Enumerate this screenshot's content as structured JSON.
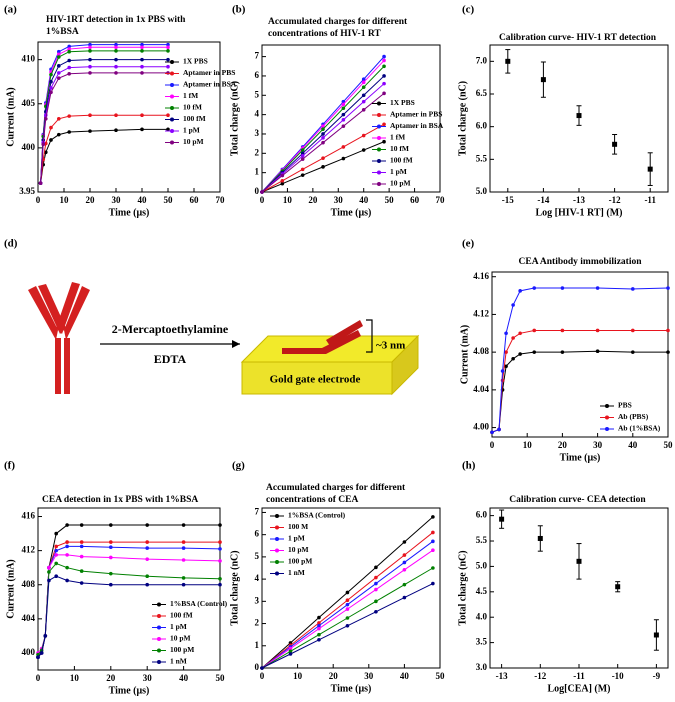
{
  "chart_data": [
    {
      "type": "line",
      "panel": "(a)",
      "title": "HIV-1RT detection in 1x PBS with 1%BSA",
      "xlabel": "Time (μs)",
      "ylabel": "Current (mA)",
      "x": [
        1,
        2,
        3,
        5,
        8,
        12,
        20,
        30,
        40,
        50
      ],
      "xlim": [
        0,
        70
      ],
      "xticks": [
        0,
        10,
        20,
        30,
        40,
        50,
        60,
        70
      ],
      "ylim": [
        3.95,
        4.12
      ],
      "yticks": [
        3.95,
        {
          "value": 4.0,
          "label": "400"
        },
        {
          "value": 4.05,
          "label": "405"
        },
        {
          "value": 4.1,
          "label": "410"
        }
      ],
      "legend": "upper right",
      "series": [
        {
          "name": "1X PBS",
          "color": "#000000",
          "values": [
            3.96,
            3.981,
            3.995,
            4.009,
            4.015,
            4.018,
            4.019,
            4.02,
            4.021,
            4.021
          ]
        },
        {
          "name": "Aptamer in PBS",
          "color": "#e8141e",
          "values": [
            3.96,
            3.987,
            4.005,
            4.023,
            4.033,
            4.036,
            4.037,
            4.037,
            4.037,
            4.037
          ]
        },
        {
          "name": "Aptamer in BSA",
          "color": "#1a1aff",
          "values": [
            3.96,
            4.015,
            4.051,
            4.089,
            4.109,
            4.115,
            4.117,
            4.117,
            4.117,
            4.117
          ]
        },
        {
          "name": "1 fM",
          "color": "#ff00ff",
          "values": [
            3.96,
            4.014,
            4.049,
            4.086,
            4.106,
            4.112,
            4.114,
            4.114,
            4.114,
            4.114
          ]
        },
        {
          "name": "10 fM",
          "color": "#008000",
          "values": [
            3.96,
            4.013,
            4.047,
            4.083,
            4.103,
            4.109,
            4.11,
            4.11,
            4.11,
            4.11
          ]
        },
        {
          "name": "100 fM",
          "color": "#000080",
          "values": [
            3.96,
            4.009,
            4.041,
            4.075,
            4.093,
            4.099,
            4.1,
            4.1,
            4.1,
            4.1
          ]
        },
        {
          "name": "1 pM",
          "color": "#8b00ff",
          "values": [
            3.96,
            4.006,
            4.037,
            4.068,
            4.085,
            4.091,
            4.092,
            4.092,
            4.092,
            4.092
          ]
        },
        {
          "name": "10 pM",
          "color": "#800080",
          "values": [
            3.96,
            4.004,
            4.033,
            4.063,
            4.079,
            4.084,
            4.085,
            4.085,
            4.085,
            4.085
          ]
        }
      ]
    },
    {
      "type": "line",
      "panel": "(b)",
      "title": "Accumulated charges for different concentrations of HIV-1 RT",
      "xlabel": "Time (μs)",
      "ylabel": "Total charge (nC)",
      "x": [
        0,
        8,
        16,
        24,
        32,
        40,
        48
      ],
      "xlim": [
        0,
        70
      ],
      "xticks": [
        0,
        10,
        20,
        30,
        40,
        50,
        60,
        70
      ],
      "ylim": [
        0,
        7.6
      ],
      "yticks": [
        0,
        1,
        2,
        3,
        4,
        5,
        6,
        7
      ],
      "legend": "lower right",
      "series": [
        {
          "name": "1X PBS",
          "color": "#000000",
          "values": [
            0,
            0.43,
            0.87,
            1.3,
            1.73,
            2.17,
            2.6
          ]
        },
        {
          "name": "Aptamer in PBS",
          "color": "#e8141e",
          "values": [
            0,
            0.58,
            1.17,
            1.75,
            2.33,
            2.92,
            3.5
          ]
        },
        {
          "name": "Aptamer in BSA",
          "color": "#1a1aff",
          "values": [
            0,
            1.17,
            2.33,
            3.5,
            4.67,
            5.83,
            7.0
          ]
        },
        {
          "name": "1 fM",
          "color": "#ff00ff",
          "values": [
            0,
            1.13,
            2.27,
            3.4,
            4.53,
            5.67,
            6.8
          ]
        },
        {
          "name": "10 fM",
          "color": "#008000",
          "values": [
            0,
            1.08,
            2.17,
            3.25,
            4.33,
            5.42,
            6.5
          ]
        },
        {
          "name": "100 fM",
          "color": "#000080",
          "values": [
            0,
            1,
            2,
            3,
            4,
            5,
            6
          ]
        },
        {
          "name": "1 pM",
          "color": "#8b00ff",
          "values": [
            0,
            0.93,
            1.87,
            2.8,
            3.73,
            4.67,
            5.6
          ]
        },
        {
          "name": "10 pM",
          "color": "#800080",
          "values": [
            0,
            0.85,
            1.7,
            2.55,
            3.4,
            4.25,
            5.1
          ]
        }
      ]
    },
    {
      "type": "scatter",
      "panel": "(c)",
      "title": "Calibration curve- HIV-1 RT detection",
      "xlabel": "Log [HIV-1 RT] (M)",
      "ylabel": "Total charge (nC)",
      "color": "#000000",
      "x": [
        -15,
        -14,
        -13,
        -12,
        -11
      ],
      "values": [
        7.0,
        6.72,
        6.17,
        5.73,
        5.35
      ],
      "errors": [
        0.18,
        0.27,
        0.15,
        0.15,
        0.25
      ],
      "xlim": [
        -15.5,
        -10.5
      ],
      "xticks": [
        -15,
        -14,
        -13,
        -12,
        -11
      ],
      "ylim": [
        5.0,
        7.25
      ],
      "yticks": [
        {
          "value": 5.0,
          "label": "5.0"
        },
        5.5,
        {
          "value": 6.0,
          "label": "6.0"
        },
        6.5,
        {
          "value": 7.0,
          "label": "7.0"
        }
      ]
    },
    {
      "type": "line",
      "panel": "(e)",
      "title": "CEA Antibody immobilization",
      "xlabel": "Time (μs)",
      "ylabel": "Current (mA)",
      "x": [
        0,
        2,
        3,
        4,
        6,
        8,
        12,
        20,
        30,
        40,
        50
      ],
      "xlim": [
        0,
        50
      ],
      "xticks": [
        0,
        10,
        20,
        30,
        40,
        50
      ],
      "ylim": [
        3.99,
        4.165
      ],
      "yticks": [
        {
          "value": 4.0,
          "label": "4.00"
        },
        4.04,
        {
          "value": 4.08,
          "label": "4.08"
        },
        4.12,
        4.16
      ],
      "legend": "lower right",
      "series": [
        {
          "name": "PBS",
          "color": "#000000",
          "values": [
            3.995,
            3.998,
            4.04,
            4.065,
            4.073,
            4.078,
            4.08,
            4.08,
            4.081,
            4.08,
            4.08
          ]
        },
        {
          "name": "Ab (PBS)",
          "color": "#e8141e",
          "values": [
            3.995,
            3.998,
            4.05,
            4.08,
            4.095,
            4.1,
            4.103,
            4.103,
            4.103,
            4.103,
            4.103
          ]
        },
        {
          "name": "Ab (1%BSA)",
          "color": "#1a1aff",
          "values": [
            3.995,
            3.998,
            4.06,
            4.1,
            4.13,
            4.145,
            4.148,
            4.148,
            4.148,
            4.147,
            4.148
          ]
        }
      ]
    },
    {
      "type": "line",
      "panel": "(f)",
      "title": "CEA detection in 1x PBS with 1%BSA",
      "xlabel": "Time (μs)",
      "ylabel": "Current (mA)",
      "x": [
        0,
        1,
        2,
        3,
        5,
        8,
        12,
        20,
        30,
        40,
        50
      ],
      "xlim": [
        0,
        50
      ],
      "xticks": [
        0,
        10,
        20,
        30,
        40,
        50
      ],
      "ylim": [
        3.98,
        4.17
      ],
      "yticks": [
        {
          "value": 4.0,
          "label": "400"
        },
        {
          "value": 4.04,
          "label": "404"
        },
        {
          "value": 4.08,
          "label": "408"
        },
        {
          "value": 4.12,
          "label": "412"
        },
        {
          "value": 4.16,
          "label": "416"
        }
      ],
      "legend": "lower right",
      "series": [
        {
          "name": "1%BSA (Control)",
          "color": "#000000",
          "values": [
            3.995,
            4.0,
            4.02,
            4.1,
            4.14,
            4.15,
            4.15,
            4.15,
            4.15,
            4.15,
            4.15
          ]
        },
        {
          "name": "100 fM",
          "color": "#e8141e",
          "values": [
            3.995,
            4.0,
            4.02,
            4.1,
            4.125,
            4.13,
            4.13,
            4.13,
            4.13,
            4.13,
            4.13
          ]
        },
        {
          "name": "1 pM",
          "color": "#1a1aff",
          "values": [
            3.995,
            4.0,
            4.02,
            4.1,
            4.12,
            4.125,
            4.125,
            4.124,
            4.123,
            4.123,
            4.122
          ]
        },
        {
          "name": "10 pM",
          "color": "#ff00ff",
          "values": [
            4.0,
            4.005,
            4.02,
            4.1,
            4.115,
            4.115,
            4.113,
            4.112,
            4.11,
            4.109,
            4.108
          ]
        },
        {
          "name": "100 pM",
          "color": "#008000",
          "values": [
            3.998,
            4.003,
            4.02,
            4.095,
            4.105,
            4.1,
            4.096,
            4.093,
            4.09,
            4.088,
            4.087
          ]
        },
        {
          "name": "1 nM",
          "color": "#000080",
          "values": [
            3.995,
            4.0,
            4.02,
            4.085,
            4.09,
            4.085,
            4.082,
            4.08,
            4.08,
            4.08,
            4.08
          ]
        }
      ]
    },
    {
      "type": "line",
      "panel": "(g)",
      "title": "Accumulated charges for different concentrations of CEA",
      "xlabel": "Time (μs)",
      "ylabel": "Total charge (nC)",
      "x": [
        0,
        8,
        16,
        24,
        32,
        40,
        48
      ],
      "xlim": [
        0,
        50
      ],
      "xticks": [
        0,
        10,
        20,
        30,
        40,
        50
      ],
      "ylim": [
        0,
        7.2
      ],
      "yticks": [
        0,
        1,
        2,
        3,
        4,
        5,
        6,
        7
      ],
      "legend": "upper left",
      "series": [
        {
          "name": "1%BSA (Control)",
          "color": "#000000",
          "values": [
            0,
            1.13,
            2.27,
            3.4,
            4.53,
            5.67,
            6.8
          ]
        },
        {
          "name": "100 M",
          "color": "#e8141e",
          "values": [
            0,
            1.02,
            2.03,
            3.05,
            4.07,
            5.08,
            6.1
          ]
        },
        {
          "name": "1 pM",
          "color": "#1a1aff",
          "values": [
            0,
            0.95,
            1.9,
            2.85,
            3.8,
            4.75,
            5.7
          ]
        },
        {
          "name": "10 pM",
          "color": "#ff00ff",
          "values": [
            0,
            0.88,
            1.77,
            2.65,
            3.53,
            4.42,
            5.3
          ]
        },
        {
          "name": "100 pM",
          "color": "#008000",
          "values": [
            0,
            0.75,
            1.5,
            2.25,
            3,
            3.75,
            4.5
          ]
        },
        {
          "name": "1 nM",
          "color": "#000080",
          "values": [
            0,
            0.63,
            1.27,
            1.9,
            2.53,
            3.17,
            3.8
          ]
        }
      ]
    },
    {
      "type": "scatter",
      "panel": "(h)",
      "title": "Calibration curve- CEA detection",
      "xlabel": "Log[CEA] (M)",
      "ylabel": "Total charge (nC)",
      "color": "#000000",
      "x": [
        -13,
        -12,
        -11,
        -10,
        -9
      ],
      "values": [
        5.93,
        5.55,
        5.1,
        4.6,
        3.65
      ],
      "errors": [
        0.18,
        0.25,
        0.35,
        0.1,
        0.3
      ],
      "xlim": [
        -13.3,
        -8.7
      ],
      "xticks": [
        -13,
        -12,
        -11,
        -10,
        -9
      ],
      "ylim": [
        3.0,
        6.15
      ],
      "yticks": [
        {
          "value": 3.0,
          "label": "3.0"
        },
        3.5,
        {
          "value": 4.0,
          "label": "4.0"
        },
        4.5,
        {
          "value": 5.0,
          "label": "5.0"
        },
        5.5,
        {
          "value": 6.0,
          "label": "6.0"
        }
      ]
    }
  ],
  "diagram": {
    "panel": "(d)",
    "reagent": "2-Mercaptoethylamine",
    "chelator": "EDTA",
    "electrode": "Gold gate electrode",
    "height": "~3 nm"
  }
}
